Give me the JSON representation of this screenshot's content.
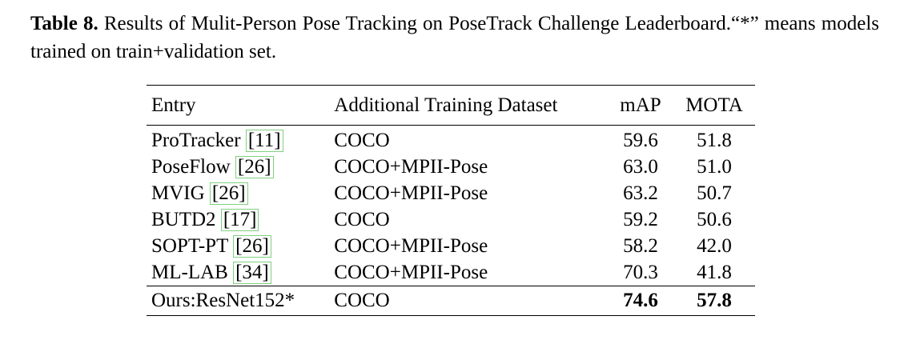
{
  "caption": {
    "label": "Table 8.",
    "text": "Results of Mulit-Person Pose Tracking on PoseTrack Challenge Leaderboard.“*” means models trained on train+validation set."
  },
  "table": {
    "headers": [
      "Entry",
      "Additional Training Dataset",
      "mAP",
      "MOTA"
    ],
    "rows": [
      {
        "entry": "ProTracker",
        "cite": "[11]",
        "dataset": "COCO",
        "map": "59.6",
        "mota": "51.8"
      },
      {
        "entry": "PoseFlow",
        "cite": "[26]",
        "dataset": "COCO+MPII-Pose",
        "map": "63.0",
        "mota": "51.0"
      },
      {
        "entry": "MVIG",
        "cite": "[26]",
        "dataset": "COCO+MPII-Pose",
        "map": "63.2",
        "mota": "50.7"
      },
      {
        "entry": "BUTD2",
        "cite": "[17]",
        "dataset": "COCO",
        "map": "59.2",
        "mota": "50.6"
      },
      {
        "entry": "SOPT-PT",
        "cite": "[26]",
        "dataset": "COCO+MPII-Pose",
        "map": "58.2",
        "mota": "42.0"
      },
      {
        "entry": "ML-LAB",
        "cite": "[34]",
        "dataset": "COCO+MPII-Pose",
        "map": "70.3",
        "mota": "41.8"
      }
    ],
    "ours": {
      "entry": "Ours:ResNet152*",
      "dataset": "COCO",
      "map": "74.6",
      "mota": "57.8"
    }
  }
}
